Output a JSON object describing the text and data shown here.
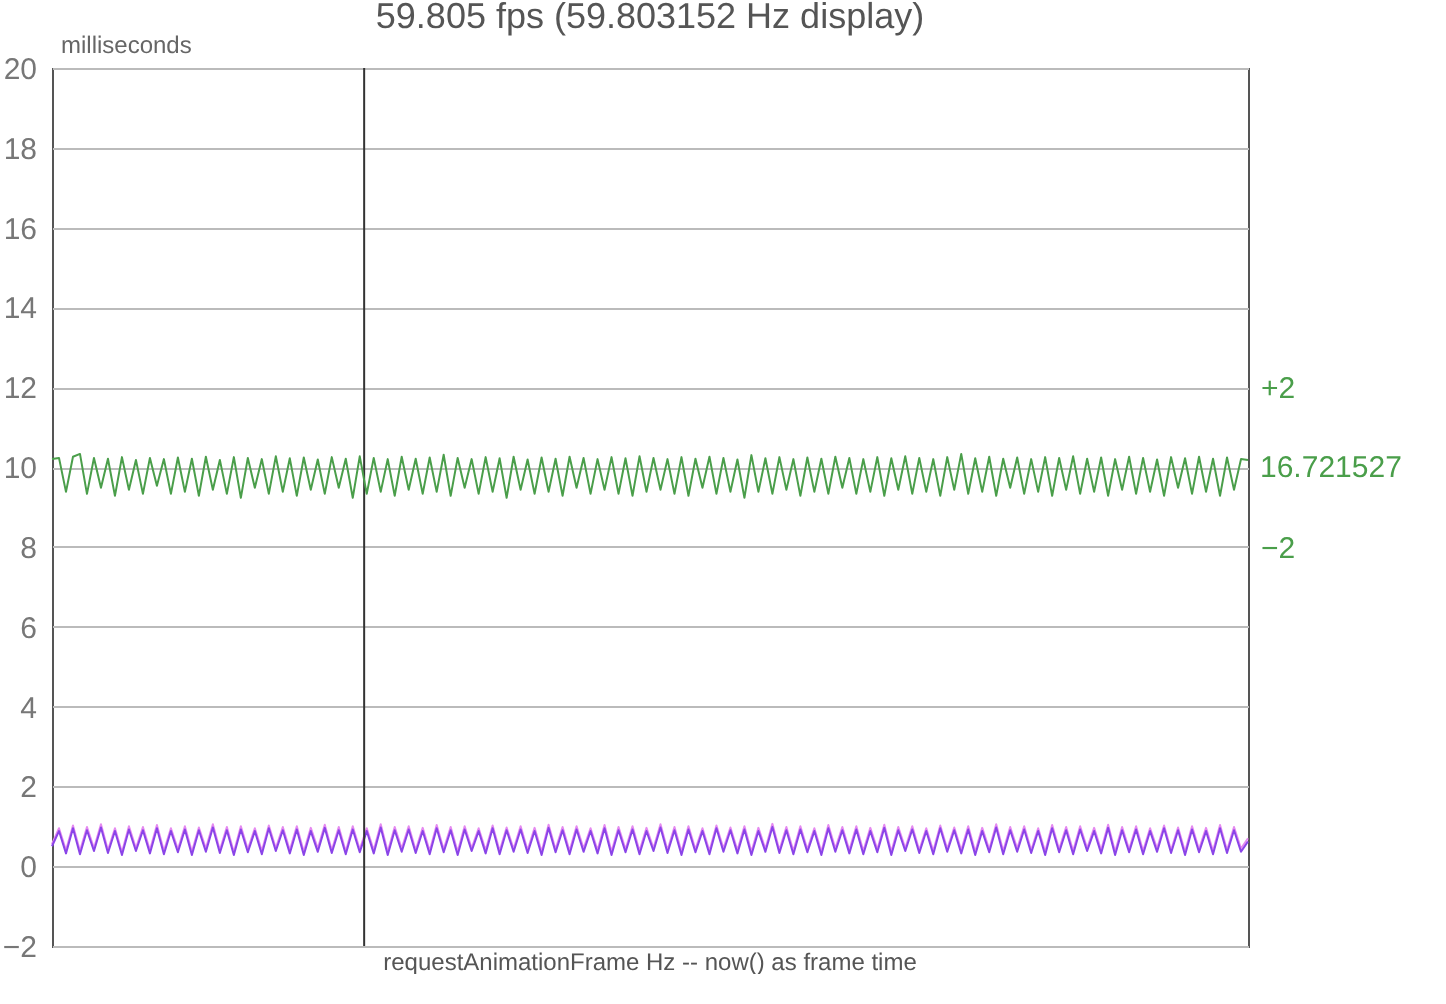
{
  "chart_data": {
    "type": "line",
    "title": "59.805 fps  (59.803152 Hz display)",
    "xlabel": "requestAnimationFrame Hz -- now() as frame time",
    "ylabel": "milliseconds",
    "categories": [
      null,
      null,
      null,
      null,
      null,
      null,
      null,
      null,
      null,
      null,
      null,
      null,
      null,
      null,
      null,
      null,
      null,
      null,
      null,
      null,
      null,
      null,
      null,
      null,
      null,
      null,
      null,
      null,
      null,
      null,
      null,
      null,
      null,
      null,
      null,
      null,
      null,
      null,
      null,
      null,
      null,
      null,
      null,
      null,
      null,
      null,
      null,
      null,
      null,
      null,
      null,
      null,
      null,
      null,
      null,
      null,
      null,
      null,
      null,
      null,
      null,
      null,
      null,
      null,
      null,
      null,
      null,
      null,
      null,
      null,
      null,
      null,
      null,
      null,
      null,
      null,
      null,
      null,
      null,
      null,
      null,
      null,
      null,
      null,
      null,
      null,
      null,
      null,
      null,
      null,
      null,
      null,
      null,
      null,
      null,
      null,
      null,
      null,
      null,
      null,
      null,
      null,
      null,
      null,
      null,
      null,
      null,
      null,
      null,
      null,
      null,
      null,
      null,
      null,
      null,
      null,
      null,
      null,
      null,
      null,
      null,
      null,
      null,
      null,
      null,
      null,
      null,
      null,
      null,
      null,
      null,
      null,
      null,
      null,
      null,
      null,
      null,
      null,
      null,
      null,
      null,
      null,
      null,
      null,
      null,
      null,
      null,
      null,
      null,
      null,
      null,
      null,
      null,
      null,
      null,
      null,
      null,
      null,
      null,
      null,
      null,
      null,
      null,
      null,
      null,
      null,
      null,
      null,
      null,
      null,
      null,
      null
    ],
    "ylim": [
      -2,
      20
    ],
    "yticks": [
      -2,
      0,
      2,
      4,
      6,
      8,
      10,
      12,
      14,
      16,
      18,
      20
    ],
    "y2lim": [
      -12,
      10
    ],
    "y2ticks": [
      {
        "value": 2,
        "label": "+2"
      },
      -2
    ],
    "annotations": [
      "16.721527"
    ],
    "grid": "y",
    "tick_labels": "y",
    "series": [
      {
        "color": "#4a9e4a",
        "axis": "y2",
        "values": [
          0.2,
          0.23,
          -0.62,
          0.26,
          0.33,
          -0.67,
          0.23,
          -0.52,
          0.21,
          -0.72,
          0.25,
          -0.57,
          0.18,
          -0.67,
          0.23,
          -0.47,
          0.2,
          -0.67,
          0.24,
          -0.62,
          0.21,
          -0.72,
          0.26,
          -0.57,
          0.18,
          -0.67,
          0.25,
          -0.77,
          0.23,
          -0.52,
          0.2,
          -0.67,
          0.27,
          -0.62,
          0.22,
          -0.72,
          0.24,
          -0.57,
          0.19,
          -0.67,
          0.25,
          -0.52,
          0.21,
          -0.77,
          0.27,
          -0.67,
          0.23,
          -0.62,
          0.2,
          -0.72,
          0.26,
          -0.57,
          0.21,
          -0.67,
          0.24,
          -0.62,
          0.31,
          -0.72,
          0.23,
          -0.52,
          0.2,
          -0.67,
          0.25,
          -0.62,
          0.22,
          -0.77,
          0.26,
          -0.57,
          0.19,
          -0.67,
          0.24,
          -0.62,
          0.21,
          -0.72,
          0.26,
          -0.52,
          0.23,
          -0.67,
          0.2,
          -0.57,
          0.25,
          -0.67,
          0.22,
          -0.72,
          0.27,
          -0.62,
          0.23,
          -0.57,
          0.2,
          -0.67,
          0.25,
          -0.72,
          0.21,
          -0.52,
          0.26,
          -0.67,
          0.23,
          -0.62,
          0.19,
          -0.77,
          0.3,
          -0.62,
          0.22,
          -0.67,
          0.25,
          -0.57,
          0.2,
          -0.72,
          0.24,
          -0.62,
          0.21,
          -0.67,
          0.26,
          -0.52,
          0.23,
          -0.67,
          0.2,
          -0.62,
          0.25,
          -0.72,
          0.22,
          -0.57,
          0.27,
          -0.67,
          0.23,
          -0.62,
          0.2,
          -0.72,
          0.25,
          -0.57,
          0.33,
          -0.67,
          0.22,
          -0.62,
          0.26,
          -0.72,
          0.21,
          -0.52,
          0.24,
          -0.67,
          0.2,
          -0.62,
          0.25,
          -0.72,
          0.23,
          -0.57,
          0.27,
          -0.67,
          0.21,
          -0.62,
          0.24,
          -0.72,
          0.2,
          -0.57,
          0.26,
          -0.67,
          0.23,
          -0.62,
          0.19,
          -0.72,
          0.25,
          -0.52,
          0.22,
          -0.67,
          0.26,
          -0.62,
          0.21,
          -0.72,
          0.24,
          -0.57,
          0.2,
          0.18
        ]
      },
      {
        "color": "#e58af0",
        "values": [
          0.55,
          0.95,
          0.4,
          1.02,
          0.38,
          0.98,
          0.45,
          1.05,
          0.4,
          0.95,
          0.35,
          1.0,
          0.45,
          0.98,
          0.4,
          1.03,
          0.38,
          0.95,
          0.42,
          1.0,
          0.36,
          0.97,
          0.44,
          1.05,
          0.4,
          0.98,
          0.35,
          1.0,
          0.42,
          0.95,
          0.38,
          1.02,
          0.45,
          0.98,
          0.4,
          1.0,
          0.36,
          0.96,
          0.44,
          1.04,
          0.4,
          0.98,
          0.37,
          1.0,
          0.42,
          0.95,
          0.4,
          1.05,
          0.36,
          0.98,
          0.44,
          1.0,
          0.4,
          0.96,
          0.38,
          1.03,
          0.42,
          0.98,
          0.36,
          1.0,
          0.45,
          0.95,
          0.4,
          1.02,
          0.38,
          0.97,
          0.43,
          1.0,
          0.4,
          0.96,
          0.36,
          1.04,
          0.42,
          0.98,
          0.38,
          1.0,
          0.44,
          0.95,
          0.4,
          1.03,
          0.36,
          0.98,
          0.42,
          1.0,
          0.38,
          0.96,
          0.45,
          1.05,
          0.4,
          0.98,
          0.36,
          1.0,
          0.42,
          0.95,
          0.38,
          1.02,
          0.44,
          0.97,
          0.4,
          1.0,
          0.36,
          0.96,
          0.43,
          1.06,
          0.4,
          0.98,
          0.38,
          1.0,
          0.42,
          0.95,
          0.36,
          1.03,
          0.44,
          0.98,
          0.4,
          1.0,
          0.38,
          0.96,
          0.42,
          1.04,
          0.36,
          0.98,
          0.45,
          1.0,
          0.4,
          0.95,
          0.38,
          1.02,
          0.43,
          0.97,
          0.4,
          1.0,
          0.36,
          0.96,
          0.42,
          1.05,
          0.38,
          0.98,
          0.44,
          1.0,
          0.4,
          0.95,
          0.36,
          1.03,
          0.42,
          0.98,
          0.38,
          1.0,
          0.45,
          0.96,
          0.4,
          1.04,
          0.36,
          0.98,
          0.42,
          1.0,
          0.38,
          0.95,
          0.44,
          1.02,
          0.4,
          0.97,
          0.36,
          1.0,
          0.42,
          0.96,
          0.38,
          1.03,
          0.4,
          0.98,
          0.44,
          0.7
        ]
      },
      {
        "color": "#8a44e8",
        "values": [
          0.5,
          0.88,
          0.32,
          0.95,
          0.3,
          0.9,
          0.38,
          0.97,
          0.33,
          0.88,
          0.28,
          0.92,
          0.38,
          0.9,
          0.32,
          0.95,
          0.3,
          0.88,
          0.35,
          0.92,
          0.28,
          0.9,
          0.36,
          0.97,
          0.33,
          0.9,
          0.28,
          0.92,
          0.35,
          0.88,
          0.3,
          0.95,
          0.38,
          0.9,
          0.32,
          0.92,
          0.28,
          0.88,
          0.36,
          0.96,
          0.33,
          0.9,
          0.3,
          0.92,
          0.35,
          0.88,
          0.32,
          0.97,
          0.28,
          0.9,
          0.36,
          0.92,
          0.33,
          0.88,
          0.3,
          0.95,
          0.35,
          0.9,
          0.28,
          0.92,
          0.38,
          0.88,
          0.32,
          0.95,
          0.3,
          0.9,
          0.36,
          0.92,
          0.33,
          0.88,
          0.28,
          0.96,
          0.35,
          0.9,
          0.3,
          0.92,
          0.36,
          0.88,
          0.32,
          0.95,
          0.28,
          0.9,
          0.35,
          0.92,
          0.3,
          0.88,
          0.38,
          0.97,
          0.33,
          0.9,
          0.28,
          0.92,
          0.35,
          0.88,
          0.3,
          0.95,
          0.36,
          0.9,
          0.32,
          0.92,
          0.28,
          0.88,
          0.36,
          0.98,
          0.33,
          0.9,
          0.3,
          0.92,
          0.35,
          0.88,
          0.28,
          0.95,
          0.36,
          0.9,
          0.32,
          0.92,
          0.3,
          0.88,
          0.35,
          0.96,
          0.28,
          0.9,
          0.38,
          0.92,
          0.33,
          0.88,
          0.3,
          0.95,
          0.36,
          0.9,
          0.32,
          0.92,
          0.28,
          0.88,
          0.35,
          0.97,
          0.3,
          0.9,
          0.36,
          0.92,
          0.33,
          0.88,
          0.28,
          0.95,
          0.35,
          0.9,
          0.3,
          0.92,
          0.38,
          0.88,
          0.32,
          0.96,
          0.28,
          0.9,
          0.35,
          0.92,
          0.3,
          0.88,
          0.36,
          0.95,
          0.33,
          0.9,
          0.28,
          0.92,
          0.35,
          0.88,
          0.3,
          0.95,
          0.33,
          0.9,
          0.36,
          0.62
        ]
      }
    ]
  }
}
